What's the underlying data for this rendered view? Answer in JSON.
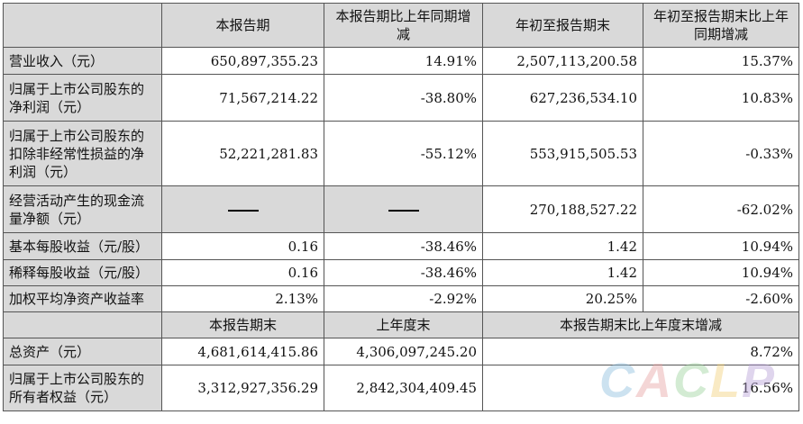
{
  "header": [
    "",
    "本报告期",
    "本报告期比上年同期增减",
    "年初至报告期末",
    "年初至报告期末比上年同期增减"
  ],
  "rows": [
    {
      "label": "营业收入（元）",
      "c1": "650,897,355.23",
      "c2": "14.91%",
      "c3": "2,507,113,200.58",
      "c4": "15.37%"
    },
    {
      "label": "归属于上市公司股东的净利润（元）",
      "c1": "71,567,214.22",
      "c2": "-38.80%",
      "c3": "627,236,534.10",
      "c4": "10.83%"
    },
    {
      "label": "归属于上市公司股东的扣除非经常性损益的净利润（元）",
      "c1": "52,221,281.83",
      "c2": "-55.12%",
      "c3": "553,915,505.53",
      "c4": "-0.33%"
    },
    {
      "label": "经营活动产生的现金流量净额（元）",
      "c1": "",
      "c2": "",
      "c3": "270,188,527.22",
      "c4": "-62.02%"
    },
    {
      "label": "基本每股收益（元/股）",
      "c1": "0.16",
      "c2": "-38.46%",
      "c3": "1.42",
      "c4": "10.94%"
    },
    {
      "label": "稀释每股收益（元/股）",
      "c1": "0.16",
      "c2": "-38.46%",
      "c3": "1.42",
      "c4": "10.94%"
    },
    {
      "label": "加权平均净资产收益率",
      "c1": "2.13%",
      "c2": "-2.92%",
      "c3": "20.25%",
      "c4": "-2.60%"
    }
  ],
  "header2": [
    "本报告期末",
    "上年度末",
    "本报告期末比上年度末增减"
  ],
  "rows2": [
    {
      "label": "总资产（元）",
      "c1": "4,681,614,415.86",
      "c2": "4,306,097,245.20",
      "c3": "8.72%"
    },
    {
      "label": "归属于上市公司股东的所有者权益（元）",
      "c1": "3,312,927,356.29",
      "c2": "2,842,304,409.45",
      "c3": "16.56%"
    }
  ],
  "watermark": [
    "C",
    "A",
    "C",
    "L",
    "P"
  ]
}
